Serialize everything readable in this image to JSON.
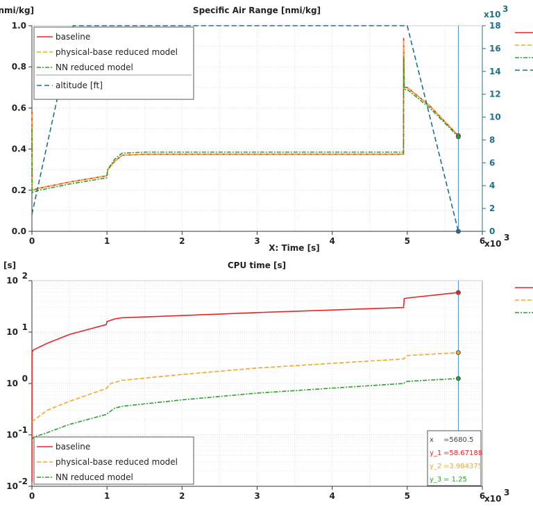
{
  "colors": {
    "baseline": "#ee2222",
    "physical": "#f5a623",
    "nn": "#2ca02c",
    "altitude": "#1f6f8b",
    "cursor": "#4a90d9"
  },
  "chart_data": [
    {
      "type": "line",
      "title": "Specific Air Range [nmi/kg]",
      "ylabel": "[nmi/kg]",
      "xlabel": "X: Time [s]",
      "x_multiplier": "x10",
      "x_exp": "3",
      "xlim": [
        0,
        6000
      ],
      "ylim": [
        0,
        1
      ],
      "y2lim": [
        0,
        18000
      ],
      "y2_multiplier": "x10",
      "y2_exp": "3",
      "grid": true,
      "legend": "top-left",
      "xticks": [
        "0",
        "1",
        "2",
        "3",
        "4",
        "5",
        "6"
      ],
      "yticks": [
        "0.0",
        "0.2",
        "0.4",
        "0.6",
        "0.8",
        "1.0"
      ],
      "y2ticks": [
        "0",
        "2",
        "4",
        "6",
        "8",
        "10",
        "12",
        "14",
        "16",
        "18"
      ],
      "series": [
        {
          "name": "baseline",
          "key": "baseline",
          "dash": "",
          "x": [
            0,
            2,
            5,
            100,
            500,
            995,
            1000,
            1010,
            1100,
            1200,
            1500,
            4950,
            4952,
            4960,
            5000,
            5300,
            5680
          ],
          "y": [
            0.58,
            0.2,
            0.2,
            0.21,
            0.24,
            0.27,
            0.28,
            0.3,
            0.34,
            0.37,
            0.375,
            0.375,
            0.94,
            0.7,
            0.7,
            0.61,
            0.465
          ]
        },
        {
          "name": "physical-base reduced model",
          "key": "physical",
          "dash": "6,3",
          "x": [
            0,
            2,
            5,
            100,
            500,
            995,
            1000,
            1010,
            1100,
            1200,
            1500,
            4950,
            4952,
            4960,
            5000,
            5300,
            5680
          ],
          "y": [
            0.57,
            0.2,
            0.2,
            0.21,
            0.24,
            0.27,
            0.28,
            0.3,
            0.34,
            0.37,
            0.375,
            0.375,
            0.93,
            0.7,
            0.7,
            0.61,
            0.465
          ]
        },
        {
          "name": "NN reduced model",
          "key": "nn",
          "dash": "6,2,2,2",
          "x": [
            0,
            2,
            5,
            100,
            500,
            995,
            1000,
            1010,
            1100,
            1200,
            1500,
            4950,
            4952,
            4960,
            5000,
            5300,
            5680
          ],
          "y": [
            0.5,
            0.19,
            0.19,
            0.2,
            0.23,
            0.26,
            0.27,
            0.3,
            0.35,
            0.38,
            0.385,
            0.385,
            0.85,
            0.69,
            0.69,
            0.6,
            0.46
          ]
        },
        {
          "name": "altitude [ft]",
          "key": "altitude",
          "axis": "y2",
          "dash": "7,4",
          "x": [
            0,
            550,
            5000,
            5680
          ],
          "y": [
            1500,
            18000,
            18000,
            0
          ]
        }
      ]
    },
    {
      "type": "line",
      "title": "CPU time [s]",
      "ylabel": "[s]",
      "x_multiplier": "x10",
      "x_exp": "3",
      "xlim": [
        0,
        6000
      ],
      "ylim": [
        0.01,
        100
      ],
      "yscale": "log",
      "grid": true,
      "legend": "bottom-left",
      "xticks": [
        "0",
        "1",
        "2",
        "3",
        "4",
        "5",
        "6"
      ],
      "yticks": [
        "10",
        "10",
        "10",
        "10",
        "10"
      ],
      "ytick_exps": [
        "-2",
        "-1",
        "0",
        "1",
        "2"
      ],
      "series": [
        {
          "name": "baseline",
          "key": "baseline",
          "dash": "",
          "x": [
            0,
            1,
            20,
            200,
            500,
            990,
            1000,
            1100,
            1200,
            2000,
            3000,
            4950,
            4960,
            5000,
            5680
          ],
          "y": [
            0.012,
            4,
            4.5,
            6,
            9,
            14,
            16,
            18,
            19,
            21,
            24,
            30,
            45,
            46,
            58.67188
          ]
        },
        {
          "name": "physical-base reduced model",
          "key": "physical",
          "dash": "6,3",
          "x": [
            0,
            20,
            200,
            500,
            990,
            1050,
            1200,
            2000,
            3000,
            4950,
            5000,
            5680
          ],
          "y": [
            0.18,
            0.19,
            0.3,
            0.45,
            0.8,
            1.0,
            1.15,
            1.5,
            2.0,
            3.0,
            3.5,
            3.984375
          ]
        },
        {
          "name": "NN reduced model",
          "key": "nn",
          "dash": "6,2,2,2",
          "x": [
            0,
            20,
            200,
            500,
            990,
            1100,
            1200,
            2000,
            3000,
            4950,
            5000,
            5680
          ],
          "y": [
            0.08,
            0.09,
            0.11,
            0.16,
            0.25,
            0.33,
            0.36,
            0.48,
            0.65,
            1.0,
            1.1,
            1.25
          ]
        }
      ],
      "cursor": {
        "x_label": "x",
        "x": "=5680.5",
        "y1_label": "y_1",
        "y1": "=58.67188",
        "y2_label": "y_2",
        "y2": "=3.984375",
        "y3_label": "y_3",
        "y3": "= 1.25"
      }
    }
  ]
}
